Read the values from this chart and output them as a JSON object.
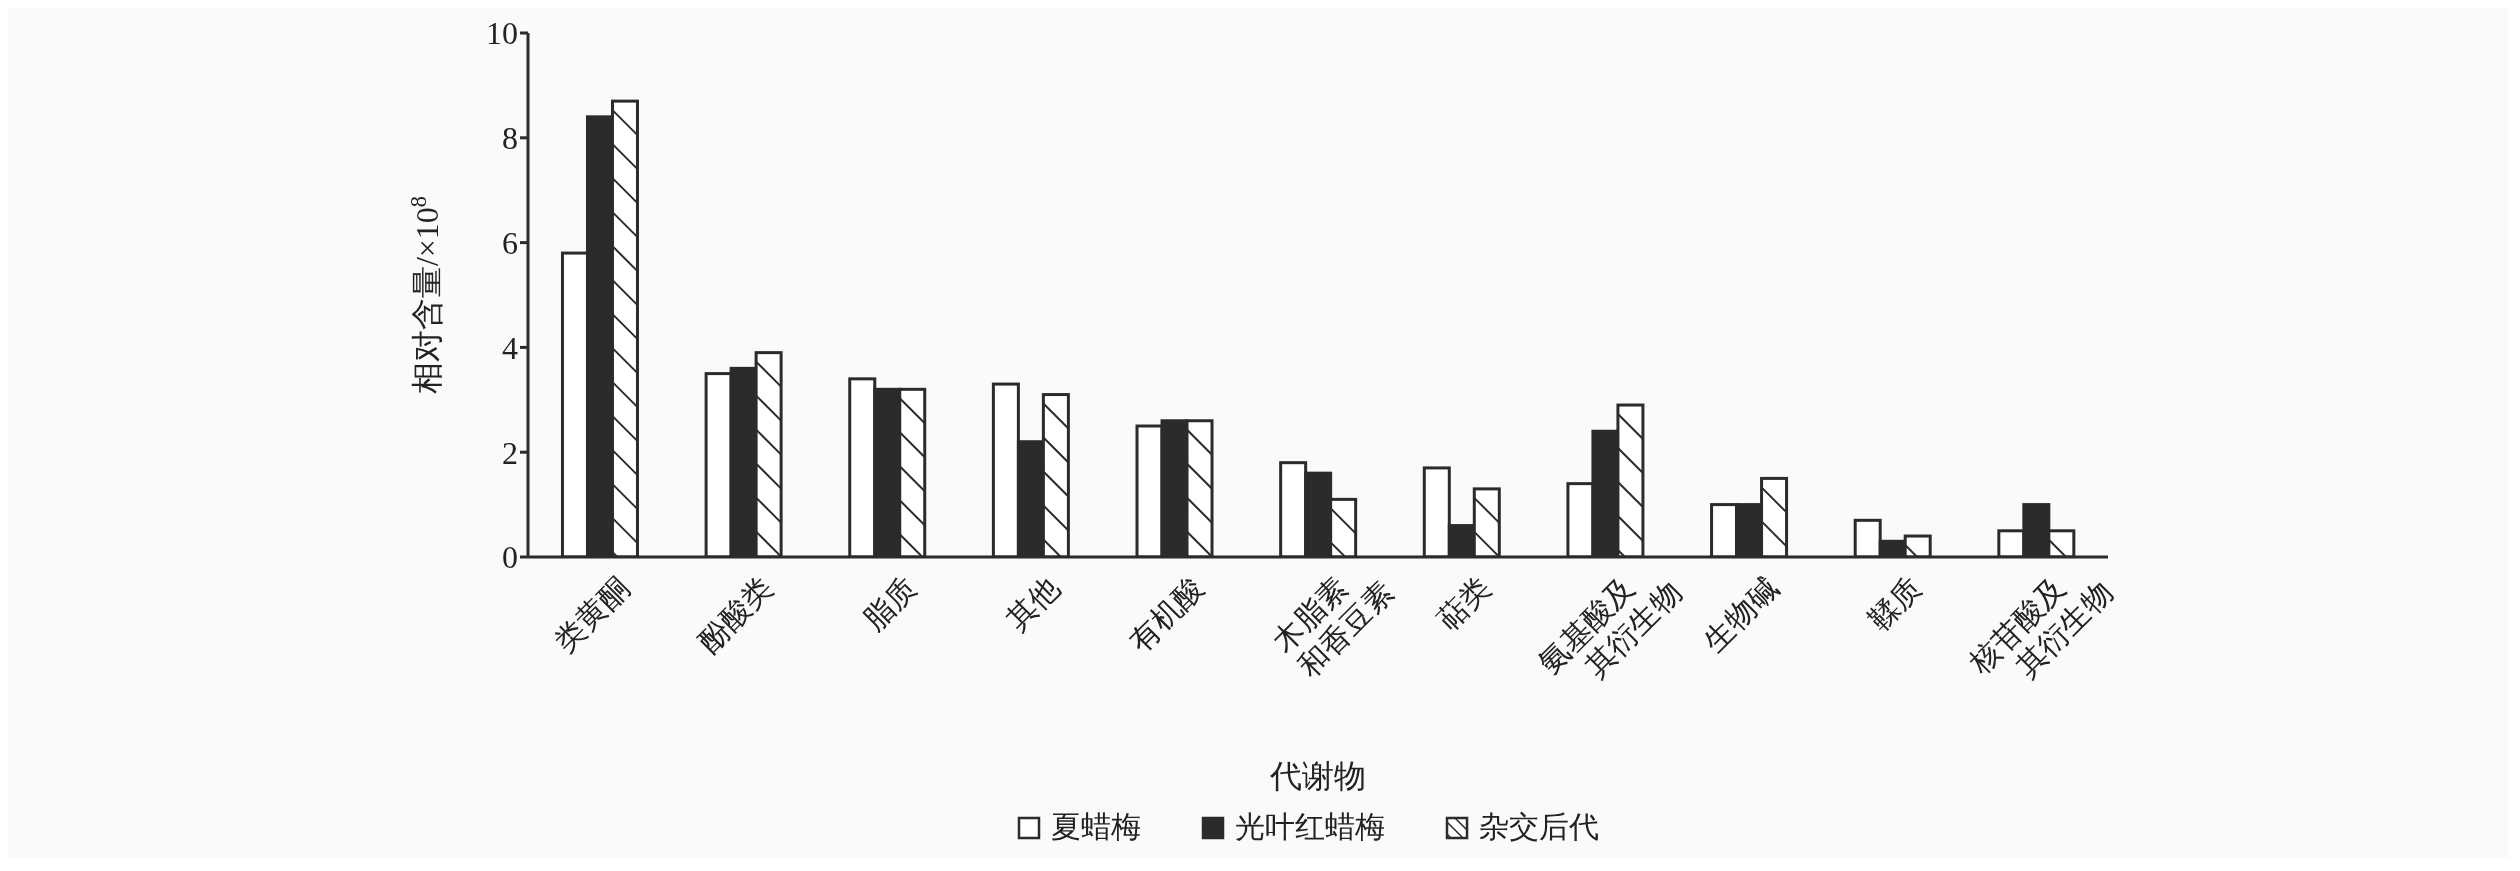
{
  "chart_data": {
    "type": "bar",
    "xlabel": "代谢物",
    "ylabel": "相对含量/×10$^{8}$",
    "categories": [
      "类黄酮",
      "酚酸类",
      "脂质",
      "其他",
      "有机酸",
      "木脂素\n和香豆素",
      "萜类",
      "氨基酸及\n其衍生物",
      "生物碱",
      "鞣质",
      "核苷酸及\n其衍生物"
    ],
    "series": [
      {
        "name": "夏蜡梅",
        "color": "#ffffff",
        "values": [
          5.8,
          3.5,
          3.4,
          3.3,
          2.5,
          1.8,
          1.7,
          1.4,
          1.0,
          0.7,
          0.5
        ]
      },
      {
        "name": "光叶红蜡梅",
        "color": "#2b2b2b",
        "values": [
          8.4,
          3.6,
          3.2,
          2.2,
          2.6,
          1.6,
          0.6,
          2.4,
          1.0,
          0.3,
          1.0
        ]
      },
      {
        "name": "杂交后代",
        "color": "#ffffff",
        "values": [
          8.7,
          3.9,
          3.2,
          3.1,
          2.6,
          1.1,
          1.3,
          2.9,
          1.5,
          0.4,
          0.5
        ]
      }
    ],
    "ylim": [
      0,
      10
    ],
    "yticks": [
      0,
      2,
      4,
      6,
      8,
      10
    ],
    "grid": false,
    "legend": "bottom"
  }
}
